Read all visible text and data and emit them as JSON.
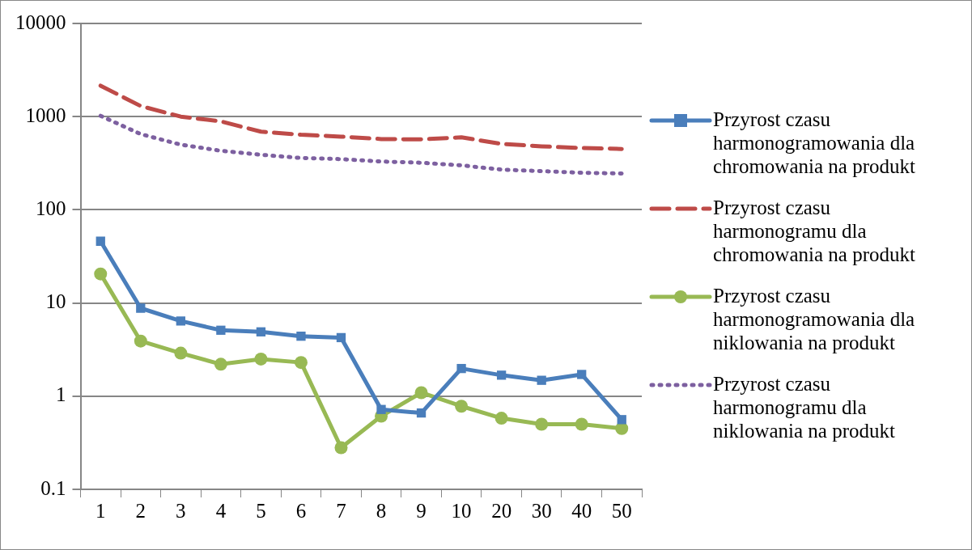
{
  "chart_data": {
    "type": "line",
    "log": "y",
    "grid": "y",
    "legend": "right",
    "categories": [
      "1",
      "2",
      "3",
      "4",
      "5",
      "6",
      "7",
      "8",
      "9",
      "10",
      "20",
      "30",
      "40",
      "50"
    ],
    "ylim": [
      0.1,
      10000
    ],
    "yticks": [
      0.1,
      1,
      10,
      100,
      1000,
      10000
    ],
    "series": [
      {
        "name": "Przyrost czasu harmonogramowania dla chromowania na produkt",
        "color": "#4a7ebb",
        "marker": "square",
        "line_style": "solid",
        "values": [
          46,
          8.8,
          6.4,
          5.1,
          4.9,
          4.4,
          4.25,
          0.72,
          0.66,
          1.98,
          1.68,
          1.48,
          1.71,
          0.56
        ]
      },
      {
        "name": "Przyrost czasu harmonogramu dla chromowania na produkt",
        "color": "#be4b48",
        "marker": "none",
        "line_style": "dashed",
        "values": [
          2150,
          1300,
          1000,
          890,
          690,
          640,
          610,
          575,
          570,
          600,
          510,
          480,
          460,
          450
        ]
      },
      {
        "name": "Przyrost czasu harmonogramowania dla niklowania na produkt",
        "color": "#98b954",
        "marker": "circle",
        "line_style": "solid",
        "values": [
          20.5,
          3.9,
          2.9,
          2.2,
          2.5,
          2.3,
          0.28,
          0.61,
          1.09,
          0.78,
          0.58,
          0.5,
          0.5,
          0.45
        ]
      },
      {
        "name": "Przyrost czasu harmonogramu dla niklowania na produkt",
        "color": "#7d60a0",
        "marker": "none",
        "line_style": "dotted",
        "values": [
          1020,
          650,
          500,
          430,
          390,
          360,
          350,
          330,
          320,
          300,
          270,
          260,
          250,
          245
        ]
      }
    ]
  }
}
